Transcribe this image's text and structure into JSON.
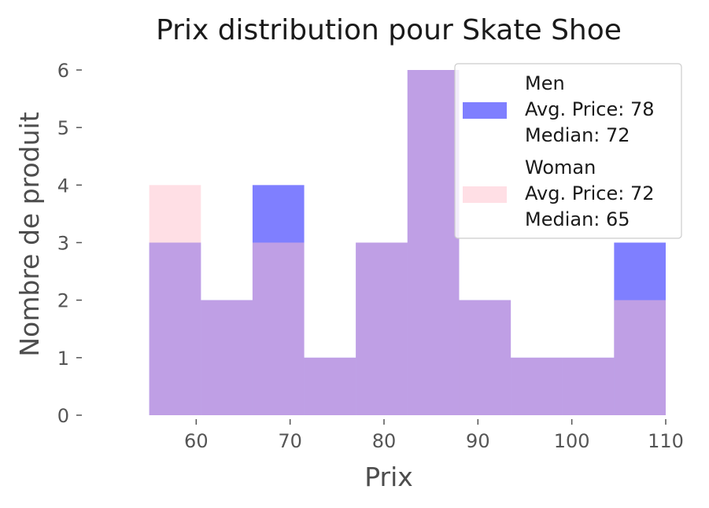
{
  "chart_data": {
    "type": "bar",
    "title": "Prix distribution pour Skate Shoe",
    "xlabel": "Prix",
    "ylabel": "Nombre de produit",
    "bin_edges": [
      55,
      60.5,
      66,
      71.5,
      77,
      82.5,
      88,
      93.5,
      99,
      104.5,
      110
    ],
    "xlim": [
      50,
      110
    ],
    "ylim": [
      0,
      6
    ],
    "x_ticks": [
      "60",
      "70",
      "80",
      "90",
      "100",
      "110"
    ],
    "y_ticks": [
      "0",
      "1",
      "2",
      "3",
      "4",
      "5",
      "6"
    ],
    "grid": false,
    "legend_placement": "top-right",
    "series": [
      {
        "name": "Men",
        "color": "#0000ff",
        "opacity": 0.5,
        "values": [
          3,
          2,
          4,
          1,
          3,
          6,
          2,
          1,
          1,
          3
        ],
        "legend_lines": [
          "Men",
          "Avg. Price: 78",
          "Median: 72"
        ]
      },
      {
        "name": "Woman",
        "color": "#ffc0cb",
        "opacity": 0.5,
        "values": [
          4,
          2,
          3,
          1,
          3,
          6,
          2,
          1,
          1,
          2
        ],
        "legend_lines": [
          "Woman",
          "Avg. Price: 72",
          "Median: 65"
        ]
      }
    ]
  }
}
